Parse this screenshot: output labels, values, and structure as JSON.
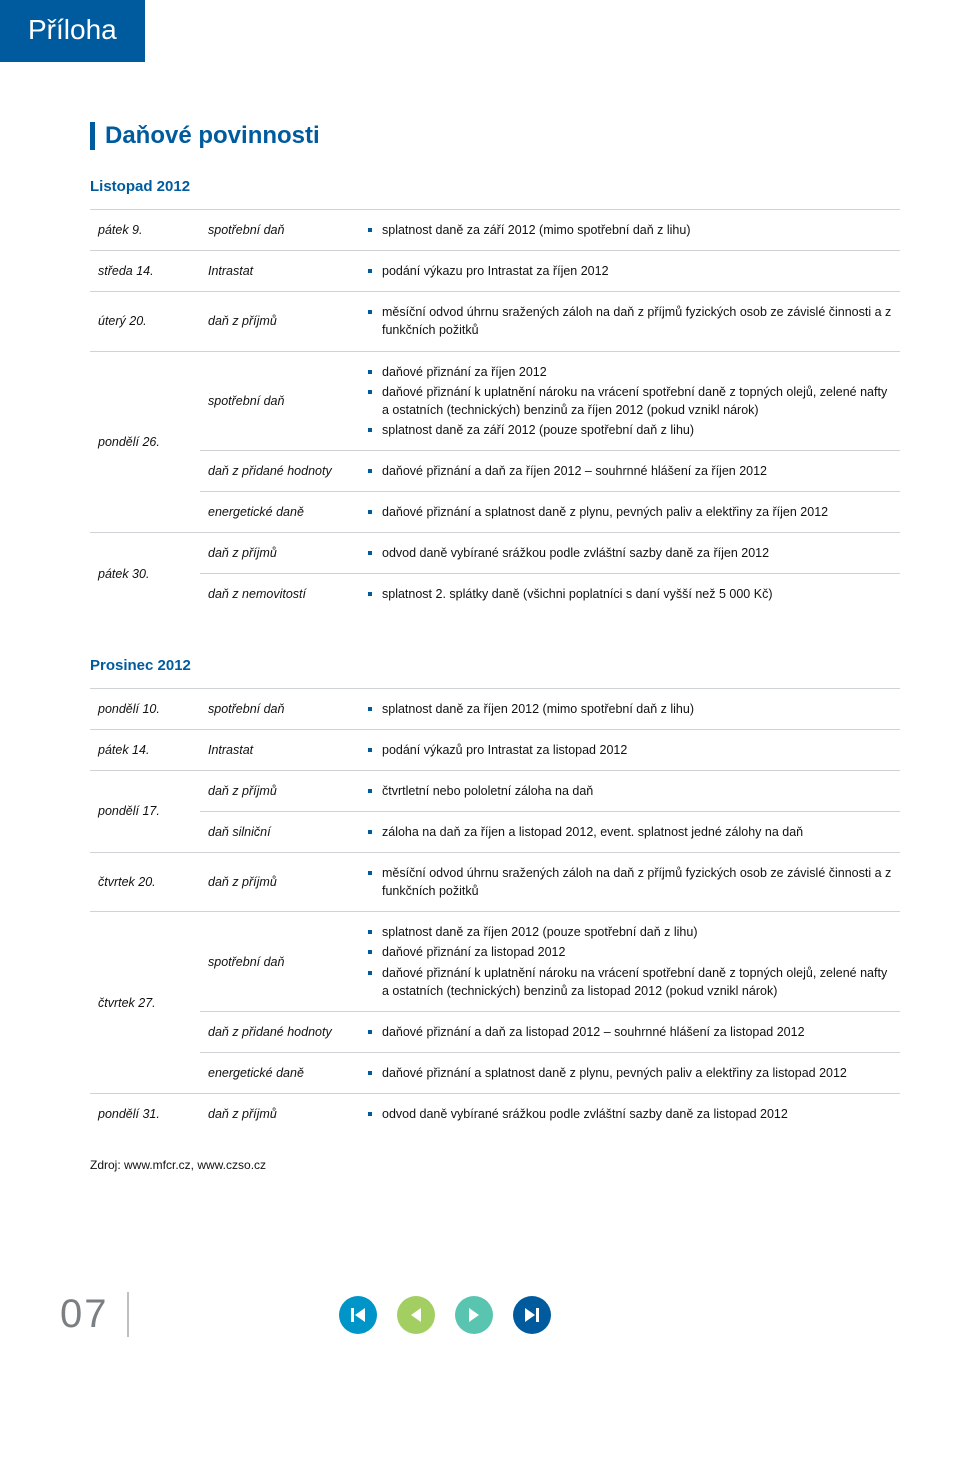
{
  "colors": {
    "brand": "#005b9e",
    "text": "#111111",
    "border": "#cfd3d6",
    "pagenum": "#7b7f82",
    "nav_first": "#0095c8",
    "nav_prev": "#a3cf62",
    "nav_next": "#59c5b0",
    "nav_last": "#005b9e",
    "nav_arrow": "#ffffff"
  },
  "tab_title": "Příloha",
  "section_title": "Daňové povinnosti",
  "months": {
    "nov": {
      "title": "Listopad 2012",
      "rows": [
        {
          "date": "pátek 9.",
          "tax": "spotřební daň",
          "items": [
            "splatnost daně za září 2012 (mimo spotřební daň z lihu)"
          ]
        },
        {
          "date": "středa 14.",
          "tax": "Intrastat",
          "items": [
            "podání výkazu pro Intrastat za říjen 2012"
          ]
        },
        {
          "date": "úterý 20.",
          "tax": "daň z příjmů",
          "items": [
            "měsíční odvod úhrnu sražených záloh na daň z příjmů fyzických osob ze závislé činnosti a z funkčních požitků"
          ]
        },
        {
          "date": "pondělí 26.",
          "span": 3,
          "sub": [
            {
              "tax": "spotřební daň",
              "items": [
                "daňové přiznání za říjen 2012",
                "daňové přiznání k uplatnění nároku na vrácení spotřební daně z topných olejů, zelené nafty a ostatních (technických) benzinů za říjen 2012 (pokud vznikl nárok)",
                "splatnost daně za září 2012 (pouze spotřební daň z lihu)"
              ]
            },
            {
              "tax": "daň z přidané hodnoty",
              "items": [
                "daňové přiznání a daň za říjen 2012 – souhrnné hlášení za říjen 2012"
              ]
            },
            {
              "tax": "energetické daně",
              "items": [
                "daňové přiznání a splatnost daně z plynu, pevných paliv a elektřiny za říjen 2012"
              ]
            }
          ]
        },
        {
          "date": "pátek 30.",
          "span": 2,
          "sub": [
            {
              "tax": "daň z příjmů",
              "items": [
                "odvod daně vybírané srážkou podle zvláštní sazby daně za říjen 2012"
              ]
            },
            {
              "tax": "daň z nemovitostí",
              "items": [
                "splatnost 2. splátky daně (všichni poplatníci s daní vyšší než 5 000 Kč)"
              ]
            }
          ]
        }
      ]
    },
    "dec": {
      "title": "Prosinec 2012",
      "rows": [
        {
          "date": "pondělí 10.",
          "tax": "spotřební daň",
          "items": [
            "splatnost daně za říjen 2012 (mimo spotřební daň z lihu)"
          ]
        },
        {
          "date": "pátek 14.",
          "tax": "Intrastat",
          "items": [
            "podání výkazů pro Intrastat za listopad 2012"
          ]
        },
        {
          "date": "pondělí 17.",
          "span": 2,
          "sub": [
            {
              "tax": "daň z příjmů",
              "items": [
                "čtvrtletní nebo pololetní záloha na daň"
              ]
            },
            {
              "tax": "daň silniční",
              "items": [
                "záloha na daň za říjen a listopad 2012, event. splatnost jedné zálohy na daň"
              ]
            }
          ]
        },
        {
          "date": "čtvrtek 20.",
          "tax": "daň z příjmů",
          "items": [
            "měsíční odvod úhrnu sražených záloh na daň z příjmů fyzických osob ze závislé činnosti a z funkčních požitků"
          ]
        },
        {
          "date": "čtvrtek 27.",
          "span": 3,
          "sub": [
            {
              "tax": "spotřební daň",
              "items": [
                "splatnost daně za říjen 2012 (pouze spotřební daň z lihu)",
                "daňové přiznání za listopad 2012",
                "daňové přiznání k uplatnění nároku na vrácení spotřební daně z topných olejů, zelené nafty a ostatních (technických) benzinů za listopad 2012 (pokud vznikl nárok)"
              ]
            },
            {
              "tax": "daň z přidané hodnoty",
              "items": [
                "daňové přiznání a daň za listopad 2012 – souhrnné hlášení za listopad 2012"
              ]
            },
            {
              "tax": "energetické daně",
              "items": [
                "daňové přiznání a splatnost daně z plynu, pevných paliv a elektřiny za listopad 2012"
              ]
            }
          ]
        },
        {
          "date": "pondělí 31.",
          "tax": "daň z příjmů",
          "items": [
            "odvod daně vybírané srážkou podle zvláštní sazby daně za listopad 2012"
          ]
        }
      ]
    }
  },
  "source": "Zdroj: www.mfcr.cz, www.czso.cz",
  "page_number": "07",
  "nav": {
    "first": "first-icon",
    "prev": "prev-icon",
    "next": "next-icon",
    "last": "last-icon"
  }
}
